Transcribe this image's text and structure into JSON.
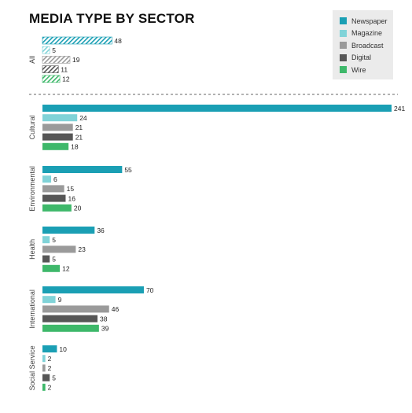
{
  "chart_data": {
    "type": "bar",
    "orientation": "horizontal",
    "title": "MEDIA TYPE BY SECTOR",
    "series": [
      {
        "name": "Newspaper",
        "color": "#1a9fb4"
      },
      {
        "name": "Magazine",
        "color": "#80d3d8"
      },
      {
        "name": "Broadcast",
        "color": "#9a9a9a"
      },
      {
        "name": "Digital",
        "color": "#565656"
      },
      {
        "name": "Wire",
        "color": "#3eb86a"
      }
    ],
    "groups": [
      {
        "name": "All",
        "values": [
          48,
          5,
          19,
          11,
          12
        ],
        "hatched": true
      },
      {
        "name": "Cultural",
        "values": [
          241,
          24,
          21,
          21,
          18
        ]
      },
      {
        "name": "Environmental",
        "values": [
          55,
          6,
          15,
          16,
          20
        ]
      },
      {
        "name": "Health",
        "values": [
          36,
          5,
          23,
          5,
          12
        ]
      },
      {
        "name": "International",
        "values": [
          70,
          9,
          46,
          38,
          39
        ]
      },
      {
        "name": "Social Service",
        "values": [
          10,
          2,
          2,
          5,
          2
        ]
      }
    ],
    "xlim": [
      0,
      241
    ],
    "legend_position": "top-right",
    "grid": false,
    "separator_after_group": "All"
  }
}
